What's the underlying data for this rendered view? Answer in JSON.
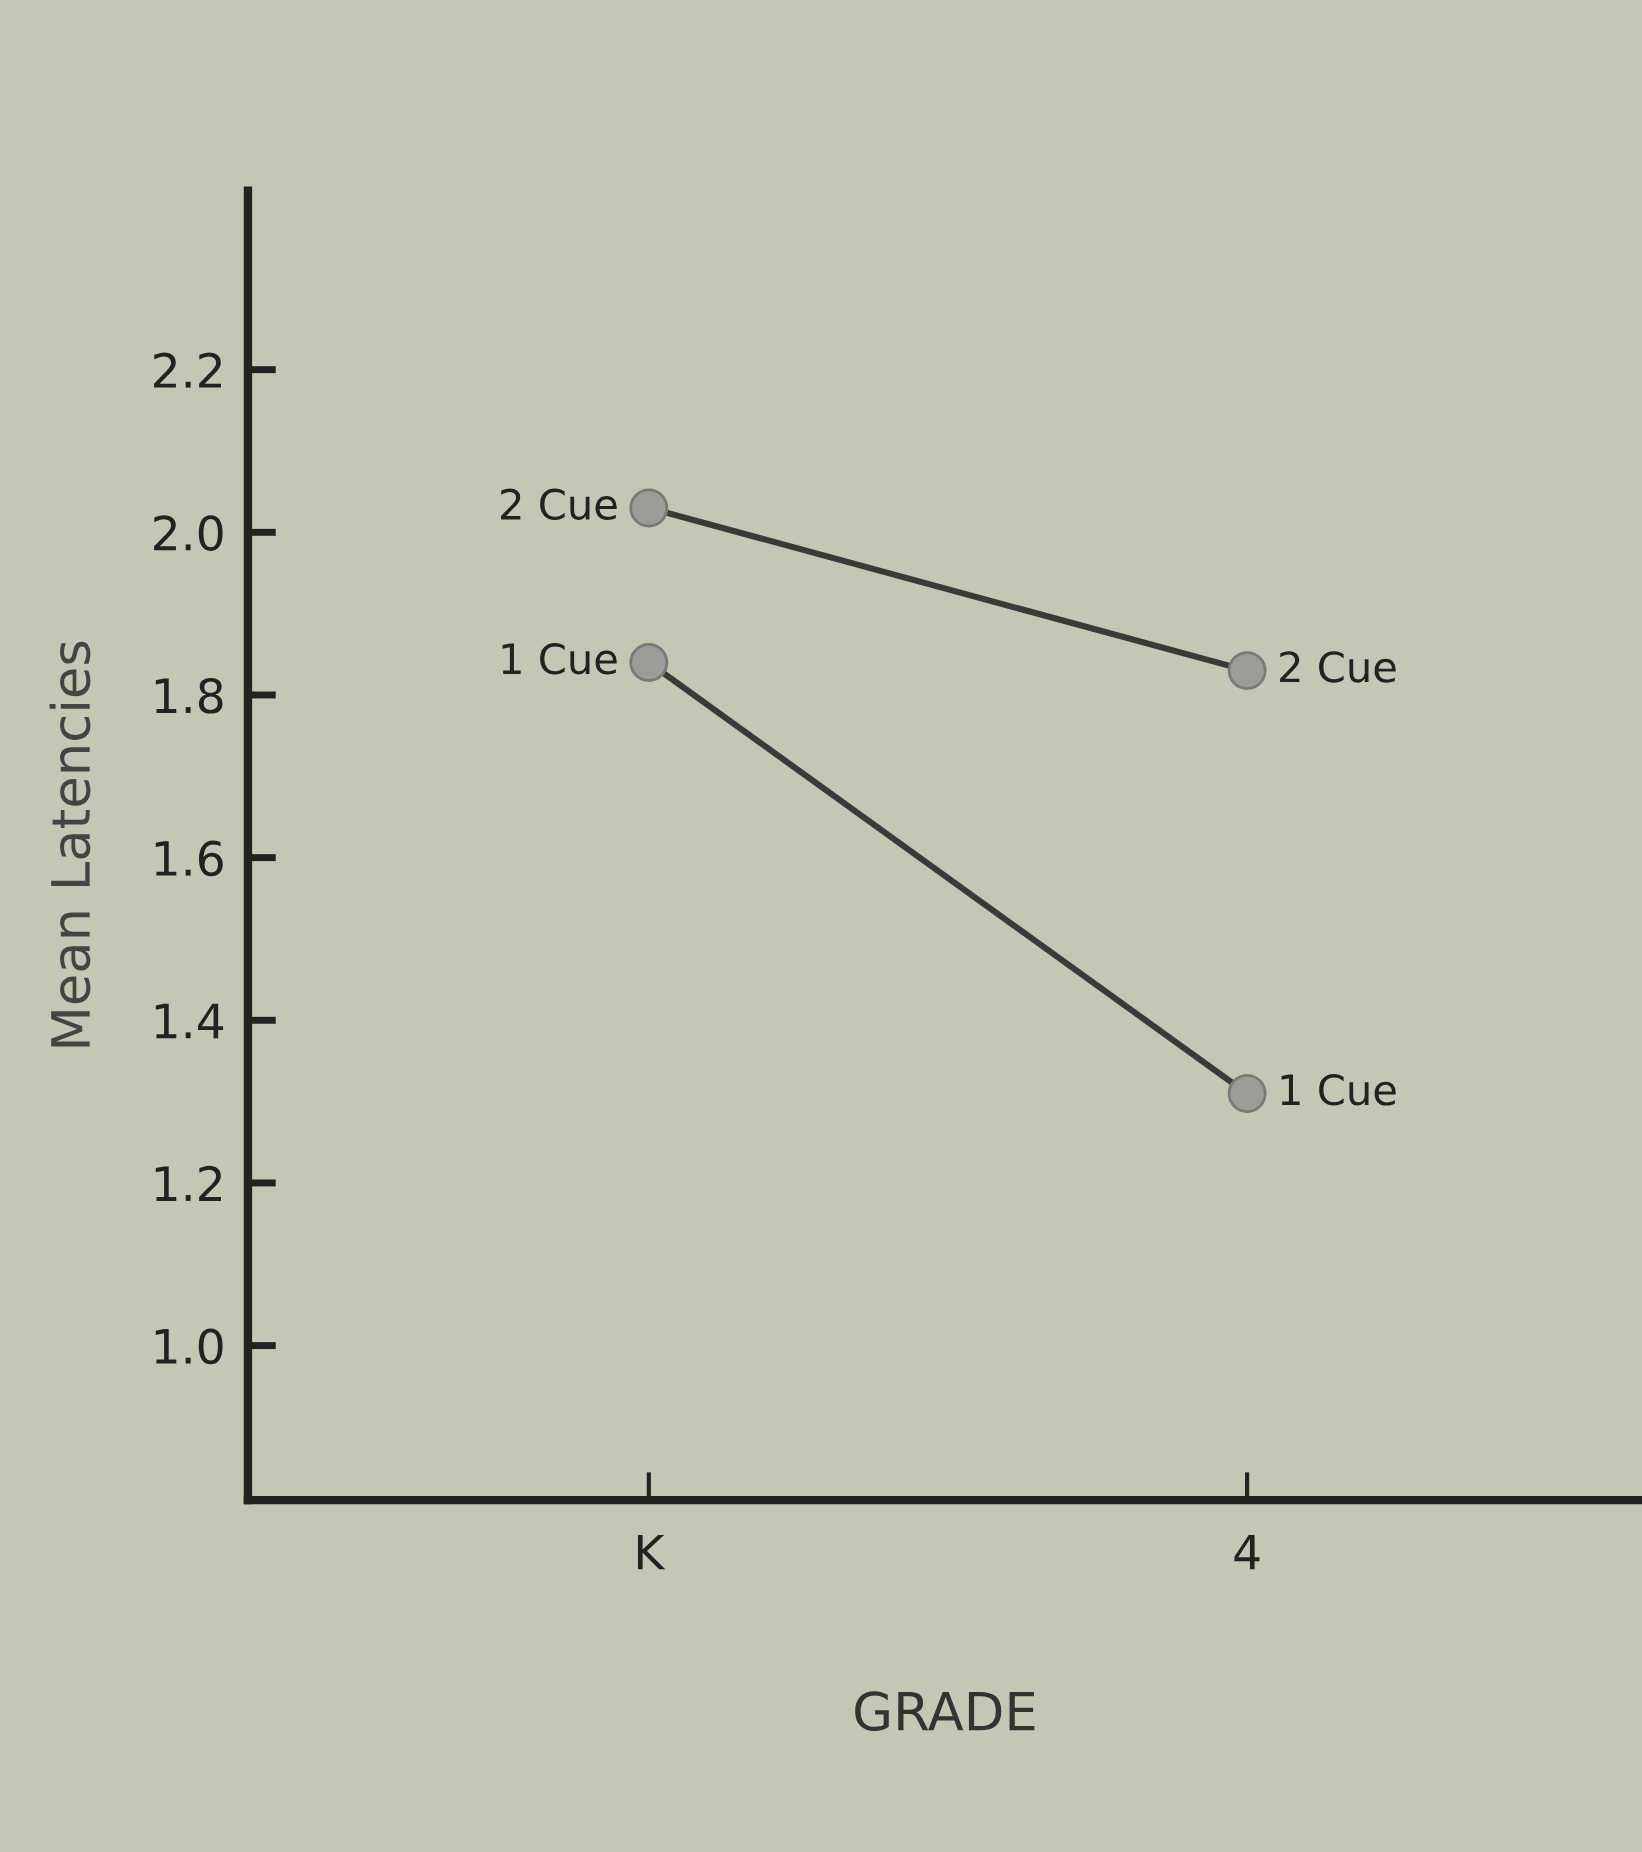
{
  "chart_data": {
    "type": "line",
    "xlabel": "GRADE",
    "ylabel": "Mean Latencies",
    "categories": [
      "K",
      "4"
    ],
    "series": [
      {
        "name": "2 Cue",
        "color": "#3a3a3a",
        "values": [
          2.03,
          1.83
        ]
      },
      {
        "name": "1 Cue",
        "color": "#3a3a3a",
        "values": [
          1.84,
          1.31
        ]
      }
    ],
    "ylim": [
      0.81,
      2.42
    ],
    "yticks": [
      {
        "value": 1.0,
        "label": "1.0"
      },
      1.2,
      1.4,
      1.6,
      1.8,
      {
        "value": 2.0,
        "label": "2.0"
      },
      2.2
    ],
    "marker": "circle",
    "line_style": "solid",
    "grid": false,
    "legend": false
  }
}
